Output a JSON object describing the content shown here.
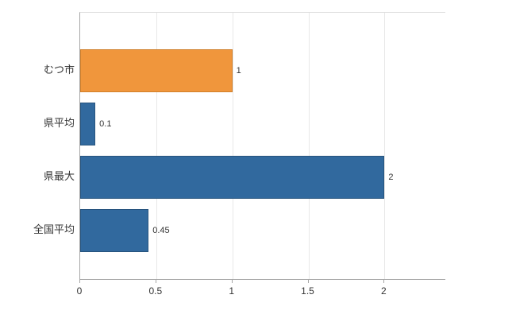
{
  "chart_data": {
    "type": "bar",
    "orientation": "horizontal",
    "title": "",
    "categories": [
      "むつ市",
      "県平均",
      "県最大",
      "全国平均"
    ],
    "values": [
      1,
      0.1,
      2,
      0.45
    ],
    "value_labels": [
      "1",
      "0.1",
      "2",
      "0.45"
    ],
    "bar_colors": [
      "#f0963c",
      "#31699e",
      "#31699e",
      "#31699e"
    ],
    "bar_border_colors": [
      "#d07f2a",
      "#27547e",
      "#27547e",
      "#27547e"
    ],
    "x_ticks": [
      0,
      0.5,
      1,
      1.5,
      2
    ],
    "x_tick_labels": [
      "0",
      "0.5",
      "1",
      "1.5",
      "2"
    ],
    "xlim": [
      0,
      2.4
    ],
    "grid": true,
    "legend": "none",
    "ylabel": "",
    "xlabel": "",
    "colors": {
      "axis": "#a6a6a6",
      "gridline": "#e8e8e8",
      "text": "#333333",
      "background": "#ffffff"
    }
  }
}
